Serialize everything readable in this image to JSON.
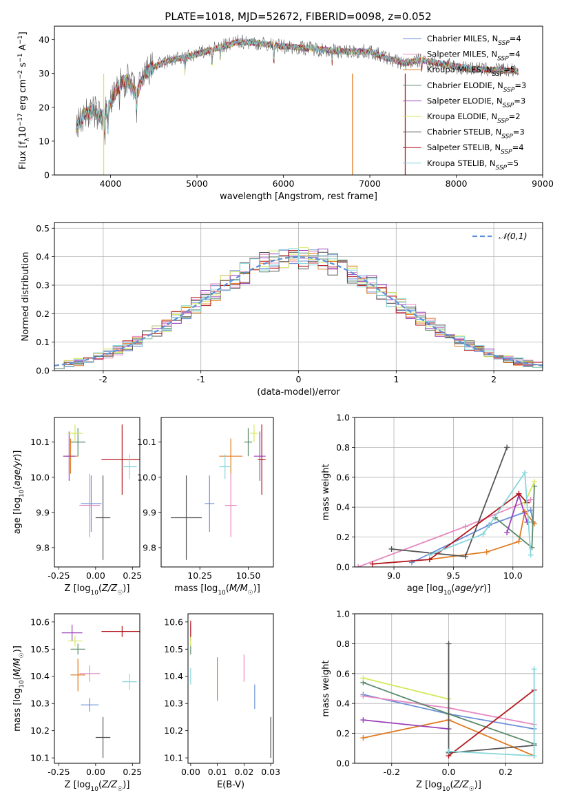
{
  "title": "PLATE=1018, MJD=52672, FIBERID=0098, z=0.052",
  "colors": {
    "Chabrier MILES": "#6a8fd6",
    "Salpeter MILES": "#e58ac0",
    "Kroupa MILES": "#e07a1f",
    "Chabrier ELODIE": "#5a8a6a",
    "Salpeter ELODIE": "#9a3fb8",
    "Kroupa ELODIE": "#d4e857",
    "Chabrier STELIB": "#555555",
    "Salpeter STELIB": "#b3161b",
    "Kroupa STELIB": "#86d6dc"
  },
  "chart_data": [
    {
      "id": "spectrum",
      "type": "line",
      "xlabel": "wavelength [Angstrom, rest frame]",
      "ylabel": "Flux [f_λ 10^-17 erg cm^-2 s^-1 A^-1]",
      "xlim": [
        3350,
        9000
      ],
      "ylim": [
        0,
        44
      ],
      "xticks": [
        4000,
        5000,
        6000,
        7000,
        8000,
        9000
      ],
      "yticks": [
        0,
        10,
        20,
        30,
        40
      ],
      "legend": "top-right",
      "series": [
        {
          "name": "Chabrier MILES",
          "nssp": "4"
        },
        {
          "name": "Salpeter MILES",
          "nssp": "4"
        },
        {
          "name": "Kroupa MILES",
          "nssp": "5"
        },
        {
          "name": "Chabrier ELODIE",
          "nssp": "3"
        },
        {
          "name": "Salpeter ELODIE",
          "nssp": "3"
        },
        {
          "name": "Kroupa ELODIE",
          "nssp": "2"
        },
        {
          "name": "Chabrier STELIB",
          "nssp": "3"
        },
        {
          "name": "Salpeter STELIB",
          "nssp": "4"
        },
        {
          "name": "Kroupa STELIB",
          "nssp": "5"
        }
      ],
      "continuum": {
        "x": [
          3600,
          3700,
          3800,
          3900,
          4000,
          4100,
          4200,
          4300,
          4400,
          4500,
          4700,
          4900,
          5100,
          5300,
          5500,
          5700,
          6000,
          6300,
          6500,
          6700,
          7000,
          7200,
          7400,
          7600,
          7800,
          8000,
          8200,
          8400,
          8600,
          8720
        ],
        "y": [
          14,
          18,
          19,
          17,
          21,
          27,
          28,
          24,
          30,
          32,
          34,
          35,
          36.5,
          38,
          39.5,
          39,
          38,
          37.5,
          37,
          36.5,
          36.5,
          34.5,
          33,
          34,
          33,
          32,
          31.5,
          31,
          31,
          30.5
        ]
      }
    },
    {
      "id": "residuals",
      "type": "line",
      "xlabel": "(data-model)/error",
      "ylabel": "Normed distribution",
      "xlim": [
        -2.5,
        2.5
      ],
      "ylim": [
        0,
        0.52
      ],
      "xticks": [
        -2,
        -1,
        0,
        1,
        2
      ],
      "yticks": [
        0.0,
        0.1,
        0.2,
        0.3,
        0.4,
        0.5
      ],
      "legend_label": "𝒩(0,1)",
      "legend": "top-right",
      "grid": true
    },
    {
      "id": "z-age",
      "type": "scatter",
      "xlabel": "Z [log10(Z/Z☉)]",
      "ylabel": "age  [log10(age/yr)]",
      "xlim": [
        -0.28,
        0.3
      ],
      "ylim": [
        9.745,
        10.17
      ],
      "xticks": [
        -0.25,
        0.0,
        0.25
      ],
      "yticks": [
        9.8,
        9.9,
        10.0,
        10.1
      ],
      "points": [
        {
          "name": "Chabrier MILES",
          "x": -0.03,
          "y": 9.925,
          "xerr": 0.07,
          "yerr": 0.08
        },
        {
          "name": "Salpeter MILES",
          "x": -0.04,
          "y": 9.92,
          "xerr": 0.07,
          "yerr": 0.09
        },
        {
          "name": "Kroupa MILES",
          "x": -0.17,
          "y": 10.06,
          "xerr": 0.05,
          "yerr": 0.05
        },
        {
          "name": "Chabrier ELODIE",
          "x": -0.12,
          "y": 10.1,
          "xerr": 0.05,
          "yerr": 0.04
        },
        {
          "name": "Salpeter ELODIE",
          "x": -0.18,
          "y": 10.06,
          "xerr": 0.04,
          "yerr": 0.07
        },
        {
          "name": "Kroupa ELODIE",
          "x": -0.14,
          "y": 10.125,
          "xerr": 0.05,
          "yerr": 0.025
        },
        {
          "name": "Chabrier STELIB",
          "x": 0.05,
          "y": 9.885,
          "xerr": 0.05,
          "yerr": 0.12
        },
        {
          "name": "Salpeter STELIB",
          "x": 0.18,
          "y": 10.05,
          "xerr": 0.14,
          "yerr": 0.1
        },
        {
          "name": "Kroupa STELIB",
          "x": 0.23,
          "y": 10.03,
          "xerr": 0.05,
          "yerr": 0.035
        }
      ]
    },
    {
      "id": "mass-age",
      "type": "scatter",
      "xlabel": "mass [log10(M/M☉)]",
      "ylabel": "",
      "xlim": [
        10.05,
        10.63
      ],
      "ylim": [
        9.745,
        10.17
      ],
      "xticks": [
        10.25,
        10.5
      ],
      "xtick_labels": [
        "10.25",
        "10.50"
      ],
      "yticks": [
        9.8,
        9.9,
        10.0,
        10.1
      ],
      "points": [
        {
          "name": "Chabrier MILES",
          "x": 10.3,
          "y": 9.925,
          "xerr": 0.025,
          "yerr": 0.08
        },
        {
          "name": "Salpeter MILES",
          "x": 10.41,
          "y": 9.92,
          "xerr": 0.03,
          "yerr": 0.09
        },
        {
          "name": "Kroupa MILES",
          "x": 10.41,
          "y": 10.06,
          "xerr": 0.06,
          "yerr": 0.05
        },
        {
          "name": "Chabrier ELODIE",
          "x": 10.5,
          "y": 10.1,
          "xerr": 0.02,
          "yerr": 0.04
        },
        {
          "name": "Salpeter ELODIE",
          "x": 10.56,
          "y": 10.06,
          "xerr": 0.03,
          "yerr": 0.07
        },
        {
          "name": "Kroupa ELODIE",
          "x": 10.53,
          "y": 10.125,
          "xerr": 0.02,
          "yerr": 0.025
        },
        {
          "name": "Chabrier STELIB",
          "x": 10.18,
          "y": 9.885,
          "xerr": 0.08,
          "yerr": 0.12
        },
        {
          "name": "Salpeter STELIB",
          "x": 10.57,
          "y": 10.05,
          "xerr": 0.02,
          "yerr": 0.1
        },
        {
          "name": "Kroupa STELIB",
          "x": 10.38,
          "y": 10.03,
          "xerr": 0.03,
          "yerr": 0.035
        }
      ]
    },
    {
      "id": "age-weight",
      "type": "line",
      "xlabel": "age  [log10(age/yr)]",
      "ylabel": "mass weight",
      "xlim": [
        8.67,
        10.25
      ],
      "ylim": [
        0,
        1.0
      ],
      "xticks": [
        9.0,
        9.5,
        10.0
      ],
      "yticks": [
        0.0,
        0.2,
        0.4,
        0.6,
        0.8,
        1.0
      ],
      "grid": true,
      "series": [
        {
          "name": "Chabrier MILES",
          "x": [
            9.15,
            9.8,
            10.15,
            10.17
          ],
          "y": [
            0.03,
            0.28,
            0.38,
            0.3
          ]
        },
        {
          "name": "Salpeter MILES",
          "x": [
            8.7,
            9.6,
            10.15
          ],
          "y": [
            0.0,
            0.27,
            0.45
          ]
        },
        {
          "name": "Kroupa MILES",
          "x": [
            9.3,
            9.78,
            10.05,
            10.1,
            10.18
          ],
          "y": [
            0.05,
            0.1,
            0.17,
            0.37,
            0.29
          ]
        },
        {
          "name": "Chabrier ELODIE",
          "x": [
            9.85,
            10.16,
            10.18
          ],
          "y": [
            0.33,
            0.13,
            0.54
          ]
        },
        {
          "name": "Salpeter ELODIE",
          "x": [
            9.95,
            10.05,
            10.12
          ],
          "y": [
            0.23,
            0.48,
            0.3
          ]
        },
        {
          "name": "Kroupa ELODIE",
          "x": [
            10.1,
            10.18
          ],
          "y": [
            0.43,
            0.57
          ]
        },
        {
          "name": "Chabrier STELIB",
          "x": [
            8.98,
            9.6,
            9.95
          ],
          "y": [
            0.12,
            0.07,
            0.8
          ]
        },
        {
          "name": "Salpeter STELIB",
          "x": [
            8.82,
            9.3,
            10.05,
            10.12
          ],
          "y": [
            0.02,
            0.05,
            0.49,
            0.43
          ]
        },
        {
          "name": "Kroupa STELIB",
          "x": [
            9.3,
            9.75,
            10.1,
            10.15
          ],
          "y": [
            0.08,
            0.22,
            0.63,
            0.08
          ]
        }
      ]
    },
    {
      "id": "z-mass",
      "type": "scatter",
      "xlabel": "Z [log10(Z/Z☉)]",
      "ylabel": "mass [log10(M/M☉)]",
      "xlim": [
        -0.28,
        0.3
      ],
      "ylim": [
        10.08,
        10.63
      ],
      "xticks": [
        -0.25,
        0.0,
        0.25
      ],
      "yticks": [
        10.1,
        10.2,
        10.3,
        10.4,
        10.5,
        10.6
      ],
      "points": [
        {
          "name": "Chabrier MILES",
          "x": -0.04,
          "y": 10.295,
          "xerr": 0.06,
          "yerr": 0.025
        },
        {
          "name": "Salpeter MILES",
          "x": -0.04,
          "y": 10.41,
          "xerr": 0.07,
          "yerr": 0.03
        },
        {
          "name": "Kroupa MILES",
          "x": -0.12,
          "y": 10.405,
          "xerr": 0.05,
          "yerr": 0.06
        },
        {
          "name": "Chabrier ELODIE",
          "x": -0.12,
          "y": 10.5,
          "xerr": 0.05,
          "yerr": 0.02
        },
        {
          "name": "Salpeter ELODIE",
          "x": -0.16,
          "y": 10.56,
          "xerr": 0.07,
          "yerr": 0.03
        },
        {
          "name": "Kroupa ELODIE",
          "x": -0.14,
          "y": 10.53,
          "xerr": 0.05,
          "yerr": 0.02
        },
        {
          "name": "Chabrier STELIB",
          "x": 0.05,
          "y": 10.175,
          "xerr": 0.05,
          "yerr": 0.075
        },
        {
          "name": "Salpeter STELIB",
          "x": 0.18,
          "y": 10.565,
          "xerr": 0.14,
          "yerr": 0.02
        },
        {
          "name": "Kroupa STELIB",
          "x": 0.23,
          "y": 10.38,
          "xerr": 0.05,
          "yerr": 0.03
        }
      ]
    },
    {
      "id": "ebv-mass",
      "type": "scatter",
      "xlabel": "E(B-V)",
      "ylabel": "",
      "xlim": [
        -0.001,
        0.031
      ],
      "ylim": [
        10.08,
        10.63
      ],
      "xticks": [
        0.0,
        0.01,
        0.02,
        0.03
      ],
      "xtick_labels": [
        "0.00",
        "0.01",
        "0.02",
        "0.03"
      ],
      "yticks": [
        10.1,
        10.2,
        10.3,
        10.4,
        10.5,
        10.6
      ],
      "points": [
        {
          "name": "Chabrier MILES",
          "x": 0.024,
          "y": 10.325,
          "xerr": 0.0,
          "yerr": 0.045
        },
        {
          "name": "Salpeter MILES",
          "x": 0.02,
          "y": 10.43,
          "xerr": 0.0,
          "yerr": 0.05
        },
        {
          "name": "Kroupa MILES",
          "x": 0.01,
          "y": 10.39,
          "xerr": 0.0,
          "yerr": 0.08
        },
        {
          "name": "Chabrier ELODIE",
          "x": 0.0,
          "y": 10.5,
          "xerr": 0.0,
          "yerr": 0.02
        },
        {
          "name": "Salpeter ELODIE",
          "x": 0.0,
          "y": 10.56,
          "xerr": 0.0,
          "yerr": 0.03
        },
        {
          "name": "Kroupa ELODIE",
          "x": 0.0,
          "y": 10.53,
          "xerr": 0.0,
          "yerr": 0.02
        },
        {
          "name": "Chabrier STELIB",
          "x": 0.03,
          "y": 10.175,
          "xerr": 0.0,
          "yerr": 0.075
        },
        {
          "name": "Salpeter STELIB",
          "x": 0.0,
          "y": 10.575,
          "xerr": 0.0,
          "yerr": 0.03
        },
        {
          "name": "Kroupa STELIB",
          "x": 0.0,
          "y": 10.4,
          "xerr": 0.0,
          "yerr": 0.03
        }
      ]
    },
    {
      "id": "z-weight",
      "type": "line",
      "xlabel": "Z [log10(Z/Z☉)]",
      "ylabel": "mass weight",
      "xlim": [
        -0.33,
        0.33
      ],
      "ylim": [
        0,
        1.0
      ],
      "xticks": [
        -0.2,
        0.0,
        0.2
      ],
      "yticks": [
        0.0,
        0.2,
        0.4,
        0.6,
        0.8,
        1.0
      ],
      "grid": true,
      "series": [
        {
          "name": "Chabrier MILES",
          "x": [
            -0.3,
            0.0,
            0.3
          ],
          "y": [
            0.46,
            0.33,
            0.23
          ]
        },
        {
          "name": "Salpeter MILES",
          "x": [
            -0.3,
            0.0,
            0.3
          ],
          "y": [
            0.45,
            0.37,
            0.26
          ]
        },
        {
          "name": "Kroupa MILES",
          "x": [
            -0.3,
            0.0,
            0.3
          ],
          "y": [
            0.17,
            0.29,
            0.05
          ]
        },
        {
          "name": "Chabrier ELODIE",
          "x": [
            -0.3,
            0.0,
            0.3
          ],
          "y": [
            0.54,
            0.33,
            0.13
          ]
        },
        {
          "name": "Salpeter ELODIE",
          "x": [
            -0.3,
            0.0
          ],
          "y": [
            0.29,
            0.23
          ]
        },
        {
          "name": "Kroupa ELODIE",
          "x": [
            -0.3,
            0.0
          ],
          "y": [
            0.57,
            0.43
          ]
        },
        {
          "name": "Chabrier STELIB",
          "x": [
            0.0,
            0.0,
            0.3
          ],
          "y": [
            0.8,
            0.07,
            0.12
          ]
        },
        {
          "name": "Salpeter STELIB",
          "x": [
            0.0,
            0.3
          ],
          "y": [
            0.05,
            0.49
          ]
        },
        {
          "name": "Kroupa STELIB",
          "x": [
            0.0,
            0.3,
            0.3
          ],
          "y": [
            0.08,
            0.05,
            0.63
          ]
        }
      ]
    }
  ]
}
